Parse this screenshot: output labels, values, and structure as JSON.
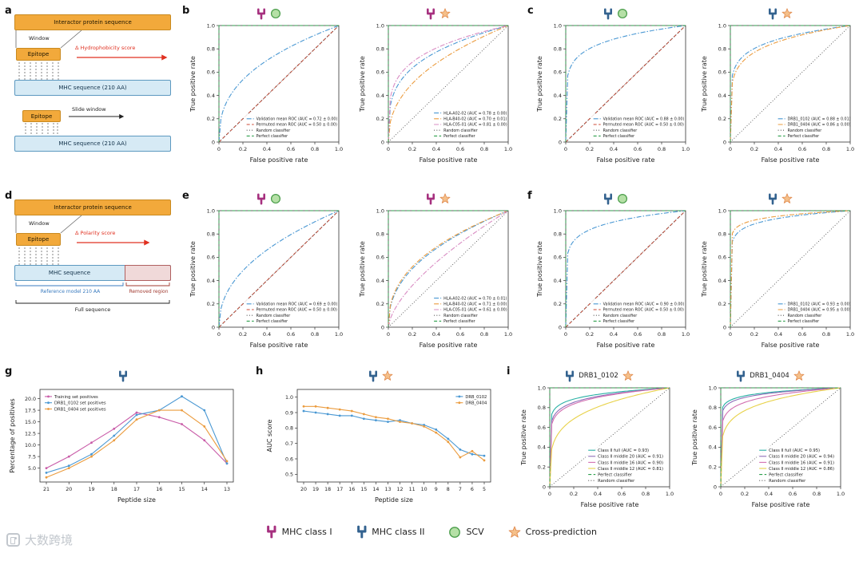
{
  "colors": {
    "mhc_class_i": "#a6307f",
    "mhc_class_ii": "#33628f",
    "scv_fill": "#b5e0a6",
    "scv_border": "#4a9d4a",
    "star_fill": "#f5c08a",
    "star_border": "#e08a4e",
    "perfect": "#2c9e4b",
    "random": "#555555",
    "permuted": "#cd4a35",
    "blue": "#4a98d3",
    "orange": "#eb9c3f",
    "pink": "#d98cc3",
    "teal": "#29b1a5",
    "purple": "#8d6cb8",
    "magenta": "#d26fb0",
    "yellow": "#e8d24a"
  },
  "panel_letters": [
    "a",
    "b",
    "c",
    "d",
    "e",
    "f",
    "g",
    "h",
    "i"
  ],
  "axis": {
    "x": "False positive rate",
    "y": "True positive rate"
  },
  "diagram_a": {
    "interactor_label": "Interactor protein sequence",
    "window_label": "Window",
    "epitope_label": "Epitope",
    "score_label": "Δ Hydrophobicity score",
    "mhc_label_1": "MHC sequence (210 AA)",
    "epitope2_label": "Epitope",
    "slide_label": "Slide window",
    "mhc_label_2": "MHC sequence (210 AA)"
  },
  "diagram_d": {
    "interactor_label": "Interactor protein sequence",
    "window_label": "Window",
    "epitope_label": "Epitope",
    "score_label": "Δ Polarity score",
    "mhc_label": "MHC sequence",
    "reference_label": "Reference model 210 AA",
    "removed_label": "Removed region",
    "full_label": "Full sequence"
  },
  "chart_data": [
    {
      "id": "b1",
      "type": "roc",
      "header": [
        {
          "icon": "mhc1"
        },
        {
          "icon": "scv"
        }
      ],
      "curves": [
        {
          "label": "Validation mean ROC (AUC = 0.72 ± 0.00)",
          "auc": 0.72,
          "color": "#4a98d3",
          "dash": "dashdot"
        },
        {
          "label": "Permuted mean ROC (AUC = 0.50 ± 0.00)",
          "auc": 0.5,
          "color": "#cd4a35",
          "dash": "dashed"
        },
        {
          "label": "Random classifier",
          "ref": "diagonal",
          "color": "#555555",
          "dash": "dotted"
        },
        {
          "label": "Perfect classifier",
          "ref": "perfect",
          "color": "#2c9e4b",
          "dash": "dashed"
        }
      ]
    },
    {
      "id": "b2",
      "type": "roc",
      "header": [
        {
          "icon": "mhc1"
        },
        {
          "icon": "star"
        }
      ],
      "curves": [
        {
          "label": "HLA-A02-02 (AUC = 0.78 ± 0.00)",
          "auc": 0.78,
          "color": "#4a98d3",
          "dash": "dashdot"
        },
        {
          "label": "HLA-B40-02 (AUC = 0.70 ± 0.01)",
          "auc": 0.7,
          "color": "#eb9c3f",
          "dash": "dashdot"
        },
        {
          "label": "HLA-C05-01 (AUC = 0.81 ± 0.00)",
          "auc": 0.81,
          "color": "#d98cc3",
          "dash": "dashdot"
        },
        {
          "label": "Random classifier",
          "ref": "diagonal",
          "color": "#555555",
          "dash": "dotted"
        },
        {
          "label": "Perfect classifier",
          "ref": "perfect",
          "color": "#2c9e4b",
          "dash": "dashed"
        }
      ]
    },
    {
      "id": "c1",
      "type": "roc",
      "header": [
        {
          "icon": "mhc2"
        },
        {
          "icon": "scv"
        }
      ],
      "curves": [
        {
          "label": "Validation mean ROC (AUC = 0.88 ± 0.00)",
          "auc": 0.88,
          "color": "#4a98d3",
          "dash": "dashdot"
        },
        {
          "label": "Permuted mean ROC (AUC = 0.50 ± 0.00)",
          "auc": 0.5,
          "color": "#cd4a35",
          "dash": "dashed"
        },
        {
          "label": "Random classifier",
          "ref": "diagonal",
          "color": "#555555",
          "dash": "dotted"
        },
        {
          "label": "Perfect classifier",
          "ref": "perfect",
          "color": "#2c9e4b",
          "dash": "dashed"
        }
      ]
    },
    {
      "id": "c2",
      "type": "roc",
      "header": [
        {
          "icon": "mhc2"
        },
        {
          "icon": "star"
        }
      ],
      "curves": [
        {
          "label": "DRB1_0102 (AUC = 0.88 ± 0.01)",
          "auc": 0.88,
          "color": "#4a98d3",
          "dash": "dashdot"
        },
        {
          "label": "DRB1_0404 (AUC = 0.86 ± 0.00)",
          "auc": 0.86,
          "color": "#eb9c3f",
          "dash": "dashdot"
        },
        {
          "label": "Random classifier",
          "ref": "diagonal",
          "color": "#555555",
          "dash": "dotted"
        },
        {
          "label": "Perfect classifier",
          "ref": "perfect",
          "color": "#2c9e4b",
          "dash": "dashed"
        }
      ]
    },
    {
      "id": "e1",
      "type": "roc",
      "header": [
        {
          "icon": "mhc1"
        },
        {
          "icon": "scv"
        }
      ],
      "curves": [
        {
          "label": "Validation mean ROC (AUC = 0.69 ± 0.00)",
          "auc": 0.69,
          "color": "#4a98d3",
          "dash": "dashdot"
        },
        {
          "label": "Permuted mean ROC (AUC = 0.50 ± 0.00)",
          "auc": 0.5,
          "color": "#cd4a35",
          "dash": "dashed"
        },
        {
          "label": "Random classifier",
          "ref": "diagonal",
          "color": "#555555",
          "dash": "dotted"
        },
        {
          "label": "Perfect classifier",
          "ref": "perfect",
          "color": "#2c9e4b",
          "dash": "dashed"
        }
      ]
    },
    {
      "id": "e2",
      "type": "roc",
      "header": [
        {
          "icon": "mhc1"
        },
        {
          "icon": "star"
        }
      ],
      "curves": [
        {
          "label": "HLA-A02-02 (AUC = 0.70 ± 0.01)",
          "auc": 0.7,
          "color": "#4a98d3",
          "dash": "dashdot"
        },
        {
          "label": "HLA-B40-02 (AUC = 0.71 ± 0.00)",
          "auc": 0.71,
          "color": "#eb9c3f",
          "dash": "dashdot"
        },
        {
          "label": "HLA-C05-01 (AUC = 0.61 ± 0.00)",
          "auc": 0.61,
          "color": "#d98cc3",
          "dash": "dashdot"
        },
        {
          "label": "Random classifier",
          "ref": "diagonal",
          "color": "#555555",
          "dash": "dotted"
        },
        {
          "label": "Perfect classifier",
          "ref": "perfect",
          "color": "#2c9e4b",
          "dash": "dashed"
        }
      ]
    },
    {
      "id": "f1",
      "type": "roc",
      "header": [
        {
          "icon": "mhc2"
        },
        {
          "icon": "scv"
        }
      ],
      "curves": [
        {
          "label": "Validation mean ROC (AUC = 0.90 ± 0.00)",
          "auc": 0.9,
          "color": "#4a98d3",
          "dash": "dashdot"
        },
        {
          "label": "Permuted mean ROC (AUC = 0.50 ± 0.00)",
          "auc": 0.5,
          "color": "#cd4a35",
          "dash": "dashed"
        },
        {
          "label": "Random classifier",
          "ref": "diagonal",
          "color": "#555555",
          "dash": "dotted"
        },
        {
          "label": "Perfect classifier",
          "ref": "perfect",
          "color": "#2c9e4b",
          "dash": "dashed"
        }
      ]
    },
    {
      "id": "f2",
      "type": "roc",
      "header": [
        {
          "icon": "mhc2"
        },
        {
          "icon": "star"
        }
      ],
      "curves": [
        {
          "label": "DRB1_0102 (AUC = 0.93 ± 0.00)",
          "auc": 0.93,
          "color": "#4a98d3",
          "dash": "dashdot"
        },
        {
          "label": "DRB1_0404 (AUC = 0.95 ± 0.00)",
          "auc": 0.95,
          "color": "#eb9c3f",
          "dash": "dashdot"
        },
        {
          "label": "Random classifier",
          "ref": "diagonal",
          "color": "#555555",
          "dash": "dotted"
        },
        {
          "label": "Perfect classifier",
          "ref": "perfect",
          "color": "#2c9e4b",
          "dash": "dashed"
        }
      ]
    },
    {
      "id": "g",
      "type": "line",
      "header": [
        {
          "icon": "mhc2"
        }
      ],
      "xlabel": "Peptide size",
      "ylabel": "Percentage of positives",
      "categories": [
        "21",
        "20",
        "19",
        "18",
        "17",
        "16",
        "15",
        "14",
        "13"
      ],
      "ylim": [
        2.0,
        22.0
      ],
      "yticks": [
        5.0,
        7.5,
        10.0,
        12.5,
        15.0,
        17.5,
        20.0
      ],
      "legend_pos": "top-left",
      "series": [
        {
          "name": "Training set positives",
          "color": "#c95ca8",
          "values": [
            5.0,
            7.5,
            10.5,
            13.5,
            17.0,
            16.0,
            14.5,
            11.0,
            6.0
          ]
        },
        {
          "name": "DRB1_0102 set positives",
          "color": "#4a98d3",
          "values": [
            4.0,
            5.5,
            8.0,
            12.0,
            16.5,
            17.5,
            20.5,
            17.5,
            6.0
          ]
        },
        {
          "name": "DRB1_0404 set positives",
          "color": "#eb9c3f",
          "values": [
            3.0,
            5.0,
            7.5,
            11.0,
            15.5,
            17.5,
            17.5,
            14.0,
            6.5
          ]
        }
      ]
    },
    {
      "id": "h",
      "type": "line",
      "header": [
        {
          "icon": "mhc2"
        },
        {
          "icon": "star"
        }
      ],
      "xlabel": "Peptide size",
      "ylabel": "AUC score",
      "categories": [
        "20",
        "19",
        "18",
        "17",
        "16",
        "15",
        "14",
        "13",
        "12",
        "11",
        "10",
        "9",
        "8",
        "7",
        "6",
        "5"
      ],
      "ylim": [
        0.45,
        1.05
      ],
      "yticks": [
        0.5,
        0.6,
        0.7,
        0.8,
        0.9,
        1.0
      ],
      "legend_pos": "top-right",
      "series": [
        {
          "name": "DRB_0102",
          "color": "#4a98d3",
          "values": [
            0.91,
            0.9,
            0.89,
            0.88,
            0.88,
            0.86,
            0.85,
            0.84,
            0.85,
            0.83,
            0.82,
            0.79,
            0.73,
            0.66,
            0.63,
            0.62
          ]
        },
        {
          "name": "DRB_0404",
          "color": "#eb9c3f",
          "values": [
            0.94,
            0.94,
            0.93,
            0.92,
            0.91,
            0.89,
            0.87,
            0.86,
            0.84,
            0.83,
            0.81,
            0.77,
            0.71,
            0.61,
            0.65,
            0.59
          ]
        }
      ]
    },
    {
      "id": "i1",
      "type": "roc",
      "header": [
        {
          "icon": "mhc2"
        },
        {
          "text": "DRB1_0102"
        },
        {
          "icon": "star"
        }
      ],
      "curves": [
        {
          "label": "Class II full (AUC = 0.93)",
          "auc": 0.93,
          "color": "#29b1a5",
          "dash": "solid"
        },
        {
          "label": "Class II middle 20 (AUC = 0.91)",
          "auc": 0.91,
          "color": "#8d6cb8",
          "dash": "solid"
        },
        {
          "label": "Class II middle 16 (AUC = 0.90)",
          "auc": 0.9,
          "color": "#d26fb0",
          "dash": "solid"
        },
        {
          "label": "Class II middle 12 (AUC = 0.81)",
          "auc": 0.81,
          "color": "#e8d24a",
          "dash": "solid"
        },
        {
          "label": "Perfect classifier",
          "ref": "perfect",
          "color": "#2c9e4b",
          "dash": "dashed"
        },
        {
          "label": "Random classifier",
          "ref": "diagonal",
          "color": "#555555",
          "dash": "dotted"
        }
      ]
    },
    {
      "id": "i2",
      "type": "roc",
      "header": [
        {
          "icon": "mhc2"
        },
        {
          "text": "DRB1_0404"
        },
        {
          "icon": "star"
        }
      ],
      "curves": [
        {
          "label": "Class II full (AUC = 0.95)",
          "auc": 0.95,
          "color": "#29b1a5",
          "dash": "solid"
        },
        {
          "label": "Class II middle 20 (AUC = 0.94)",
          "auc": 0.94,
          "color": "#8d6cb8",
          "dash": "solid"
        },
        {
          "label": "Class II middle 16 (AUC = 0.91)",
          "auc": 0.91,
          "color": "#d26fb0",
          "dash": "solid"
        },
        {
          "label": "Class II middle 12 (AUC = 0.86)",
          "auc": 0.86,
          "color": "#e8d24a",
          "dash": "solid"
        },
        {
          "label": "Perfect classifier",
          "ref": "perfect",
          "color": "#2c9e4b",
          "dash": "dashed"
        },
        {
          "label": "Random classifier",
          "ref": "diagonal",
          "color": "#555555",
          "dash": "dotted"
        }
      ]
    }
  ],
  "bottom_legend": [
    {
      "icon": "mhc1",
      "label": "MHC class I"
    },
    {
      "icon": "mhc2",
      "label": "MHC class II"
    },
    {
      "icon": "scv",
      "label": "SCV"
    },
    {
      "icon": "star",
      "label": "Cross-prediction"
    }
  ],
  "watermark": "大数跨境"
}
